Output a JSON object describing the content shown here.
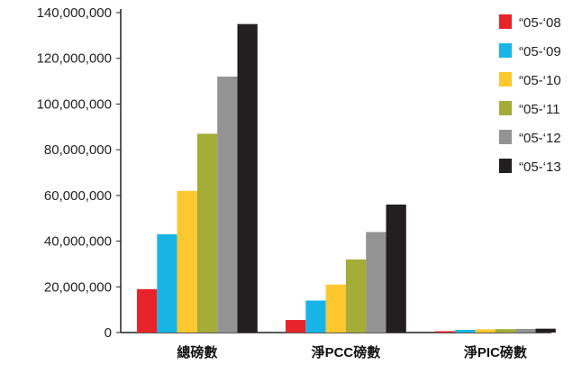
{
  "chart_data": {
    "type": "bar",
    "categories": [
      "總磅數",
      "淨PCC磅數",
      "淨PIC磅數"
    ],
    "series": [
      {
        "name": "“05-‘08",
        "color": "#e8232a",
        "values": [
          19000000,
          5500000,
          600000
        ]
      },
      {
        "name": "“05-‘09",
        "color": "#19b4e6",
        "values": [
          43000000,
          14000000,
          1200000
        ]
      },
      {
        "name": "“05-‘10",
        "color": "#fdc72f",
        "values": [
          62000000,
          21000000,
          1400000
        ]
      },
      {
        "name": "“05-‘11",
        "color": "#a3ad37",
        "values": [
          87000000,
          32000000,
          1500000
        ]
      },
      {
        "name": "“05-‘12",
        "color": "#939393",
        "values": [
          112000000,
          44000000,
          1600000
        ]
      },
      {
        "name": "“05-‘13",
        "color": "#231f20",
        "values": [
          135000000,
          56000000,
          1700000
        ]
      }
    ],
    "ylim": [
      0,
      140000000
    ],
    "yticks": [
      0,
      20000000,
      40000000,
      60000000,
      80000000,
      100000000,
      120000000,
      140000000
    ],
    "ytick_labels": [
      "0",
      "20,000,000",
      "40,000,000",
      "60,000,000",
      "80,000,000",
      "100,000,000",
      "120,000,000",
      "140,000,000"
    ],
    "title": "",
    "xlabel": "",
    "ylabel": "",
    "grid": false,
    "legend_position": "right"
  }
}
